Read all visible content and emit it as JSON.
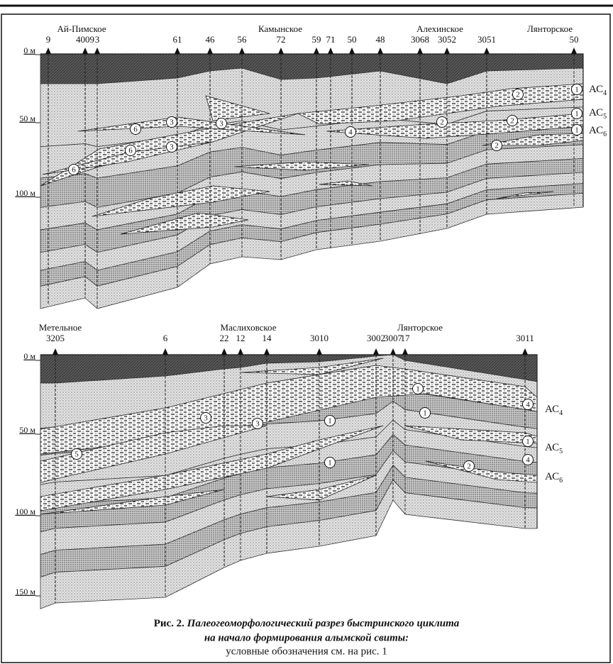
{
  "top": {
    "fields": [
      "Ай-Пимское",
      "Камынское",
      "Алехинское",
      "Лянторское"
    ],
    "wells": [
      "9",
      "4009",
      "3",
      "61",
      "46",
      "56",
      "72",
      "59",
      "71",
      "50",
      "48",
      "3068",
      "3052",
      "3051",
      "50"
    ],
    "depths": [
      "0 м",
      "50 м",
      "100 м"
    ],
    "layers": [
      {
        "name": "АС",
        "index": "4"
      },
      {
        "name": "АС",
        "index": "5"
      },
      {
        "name": "АС",
        "index": "6"
      }
    ],
    "circles": [
      "1",
      "2",
      "1",
      "2",
      "1",
      "2",
      "2",
      "4",
      "3",
      "3",
      "6",
      "3",
      "6",
      "6"
    ]
  },
  "bottom": {
    "fields": [
      "Метельное",
      "Маслиховское",
      "Лянторское"
    ],
    "wells": [
      "3205",
      "6",
      "22",
      "12",
      "14",
      "3010",
      "3002",
      "3007",
      "17",
      "3011"
    ],
    "depths": [
      "0 м",
      "50 м",
      "100 м",
      "150 м"
    ],
    "layers": [
      {
        "name": "АС",
        "index": "4"
      },
      {
        "name": "АС",
        "index": "5"
      },
      {
        "name": "АС",
        "index": "6"
      }
    ],
    "circles": [
      "1",
      "1",
      "4",
      "1",
      "3",
      "3",
      "5",
      "1",
      "2",
      "1",
      "4"
    ]
  },
  "caption": {
    "figure": "Рис. 2.",
    "title_line1": "Палеогеоморфологический разрез быстринского циклита",
    "title_line2": "на начало формирования алымской свиты:",
    "note": "условные обозначения см. на рис. 1"
  }
}
